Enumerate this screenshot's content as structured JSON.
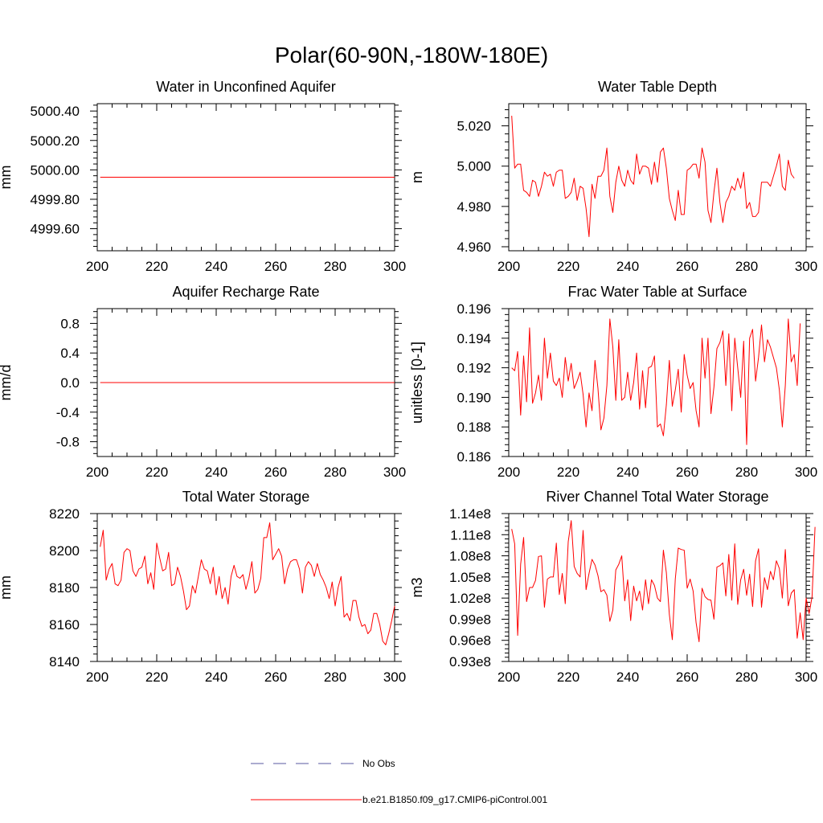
{
  "title": "Polar(60-90N,-180W-180E)",
  "colors": {
    "series": "#ff0000",
    "obs": "#5a5aa0",
    "axis": "#000000"
  },
  "legend": {
    "obs_label": "No Obs",
    "run_label": "b.e21.B1850.f09_g17.CMIP6-piControl.001"
  },
  "chart_data": [
    {
      "type": "line",
      "title": "Water in Unconfined Aquifer",
      "ylabel": "mm",
      "xlim": [
        200,
        300
      ],
      "ylim": [
        4999.45,
        5000.45
      ],
      "xticks": [
        200,
        220,
        240,
        260,
        280,
        300
      ],
      "xtick_labels": [
        "200",
        "220",
        "240",
        "260",
        "280",
        "300"
      ],
      "yticks": [
        4999.6,
        4999.8,
        5000.0,
        5000.2,
        5000.4
      ],
      "ytick_labels": [
        "4999.60",
        "4999.80",
        "5000.00",
        "5000.20",
        "5000.40"
      ],
      "x_start": 201,
      "values": [
        4999.95,
        4999.95
      ]
    },
    {
      "type": "line",
      "title": "Water Table Depth",
      "ylabel": "m",
      "xlim": [
        200,
        300
      ],
      "ylim": [
        4.958,
        5.031
      ],
      "xticks": [
        200,
        220,
        240,
        260,
        280,
        300
      ],
      "xtick_labels": [
        "200",
        "220",
        "240",
        "260",
        "280",
        "300"
      ],
      "yticks": [
        4.96,
        4.98,
        5.0,
        5.02
      ],
      "ytick_labels": [
        "4.960",
        "4.980",
        "5.000",
        "5.020"
      ],
      "x_start": 201,
      "values": [
        5.025,
        4.999,
        5.001,
        5.001,
        4.988,
        4.987,
        4.985,
        4.993,
        4.992,
        4.985,
        4.99,
        4.997,
        4.995,
        4.996,
        4.99,
        4.997,
        4.998,
        4.998,
        4.984,
        4.985,
        4.987,
        4.994,
        4.983,
        4.99,
        4.989,
        4.979,
        4.965,
        4.991,
        4.984,
        4.995,
        4.995,
        4.998,
        5.009,
        4.985,
        4.977,
        4.992,
        5.0,
        4.993,
        4.99,
        4.998,
        4.993,
        4.991,
        5.006,
        4.996,
        5.0,
        5.0,
        4.999,
        4.991,
        5.002,
        4.992,
        5.007,
        5.009,
        4.999,
        4.984,
        4.978,
        4.973,
        4.988,
        4.976,
        4.976,
        4.998,
        4.999,
        5.001,
        5.001,
        4.994,
        5.009,
        5.002,
        4.978,
        4.972,
        4.987,
        4.999,
        4.982,
        4.972,
        4.982,
        4.985,
        4.99,
        4.988,
        4.994,
        4.989,
        4.997,
        4.979,
        4.982,
        4.975,
        4.975,
        4.977,
        4.992,
        4.992,
        4.992,
        4.99,
        4.995,
        5.0,
        5.006,
        4.99,
        4.988,
        5.003,
        4.996,
        4.994
      ]
    },
    {
      "type": "line",
      "title": "Aquifer Recharge Rate",
      "ylabel": "mm/d",
      "xlim": [
        200,
        300
      ],
      "ylim": [
        -1.0,
        1.0
      ],
      "xticks": [
        200,
        220,
        240,
        260,
        280,
        300
      ],
      "xtick_labels": [
        "200",
        "220",
        "240",
        "260",
        "280",
        "300"
      ],
      "yticks": [
        -0.8,
        -0.4,
        0.0,
        0.4,
        0.8
      ],
      "ytick_labels": [
        "-0.8",
        "-0.4",
        "0.0",
        "0.4",
        "0.8"
      ],
      "x_start": 201,
      "values": [
        0.0,
        0.0
      ]
    },
    {
      "type": "line",
      "title": "Frac Water Table at Surface",
      "ylabel": "unitless [0-1]",
      "xlim": [
        200,
        300
      ],
      "ylim": [
        0.186,
        0.196
      ],
      "xticks": [
        200,
        220,
        240,
        260,
        280,
        300
      ],
      "xtick_labels": [
        "200",
        "220",
        "240",
        "260",
        "280",
        "300"
      ],
      "yticks": [
        0.186,
        0.188,
        0.19,
        0.192,
        0.194,
        0.196
      ],
      "ytick_labels": [
        "0.186",
        "0.188",
        "0.190",
        "0.192",
        "0.194",
        "0.196"
      ],
      "x_start": 201,
      "values": [
        0.192,
        0.1918,
        0.1931,
        0.1888,
        0.1928,
        0.1897,
        0.1947,
        0.1896,
        0.1903,
        0.1915,
        0.1898,
        0.194,
        0.1913,
        0.193,
        0.1911,
        0.1908,
        0.1913,
        0.19,
        0.1927,
        0.1911,
        0.1923,
        0.1906,
        0.1911,
        0.1917,
        0.1902,
        0.188,
        0.1903,
        0.1891,
        0.1925,
        0.1906,
        0.1878,
        0.1886,
        0.1908,
        0.1953,
        0.1934,
        0.1898,
        0.1939,
        0.1898,
        0.19,
        0.1917,
        0.1898,
        0.191,
        0.193,
        0.1892,
        0.1918,
        0.1893,
        0.192,
        0.1921,
        0.1928,
        0.188,
        0.1882,
        0.1874,
        0.1895,
        0.1925,
        0.1894,
        0.1905,
        0.1919,
        0.189,
        0.1929,
        0.1915,
        0.1906,
        0.191,
        0.1891,
        0.188,
        0.194,
        0.1913,
        0.194,
        0.1889,
        0.1907,
        0.1933,
        0.1937,
        0.1945,
        0.1908,
        0.1943,
        0.1891,
        0.194,
        0.192,
        0.19,
        0.1938,
        0.1868,
        0.194,
        0.1946,
        0.1911,
        0.1927,
        0.1949,
        0.1924,
        0.1939,
        0.1934,
        0.1927,
        0.192,
        0.1905,
        0.188,
        0.1908,
        0.1953,
        0.1924,
        0.1929,
        0.1908,
        0.195
      ]
    },
    {
      "type": "line",
      "title": "Total Water Storage",
      "ylabel": "mm",
      "xlim": [
        200,
        300
      ],
      "ylim": [
        8140,
        8220
      ],
      "xticks": [
        200,
        220,
        240,
        260,
        280,
        300
      ],
      "xtick_labels": [
        "200",
        "220",
        "240",
        "260",
        "280",
        "300"
      ],
      "yticks": [
        8140,
        8160,
        8180,
        8200,
        8220
      ],
      "ytick_labels": [
        "8140",
        "8160",
        "8180",
        "8200",
        "8220"
      ],
      "x_start": 201,
      "values": [
        8202,
        8211,
        8184,
        8190,
        8193,
        8182,
        8181,
        8184,
        8199,
        8201,
        8200,
        8189,
        8186,
        8190,
        8191,
        8197,
        8182,
        8188,
        8179,
        8204,
        8196,
        8189,
        8190,
        8199,
        8181,
        8182,
        8191,
        8186,
        8178,
        8168,
        8170,
        8181,
        8177,
        8186,
        8195,
        8190,
        8189,
        8182,
        8191,
        8176,
        8186,
        8174,
        8180,
        8171,
        8186,
        8192,
        8186,
        8185,
        8187,
        8179,
        8185,
        8194,
        8177,
        8179,
        8185,
        8207,
        8207,
        8215,
        8195,
        8198,
        8201,
        8197,
        8182,
        8190,
        8194,
        8195,
        8195,
        8190,
        8177,
        8191,
        8194,
        8192,
        8186,
        8193,
        8187,
        8184,
        8180,
        8174,
        8183,
        8170,
        8180,
        8186,
        8164,
        8166,
        8162,
        8173,
        8173,
        8164,
        8159,
        8160,
        8155,
        8157,
        8166,
        8166,
        8160,
        8151,
        8149,
        8155,
        8162,
        8170
      ]
    },
    {
      "type": "line",
      "title": "River Channel Total Water Storage",
      "ylabel": "m3",
      "xlim": [
        200,
        300
      ],
      "ylim": [
        93000000.0,
        114000000.0
      ],
      "xticks": [
        200,
        220,
        240,
        260,
        280,
        300
      ],
      "xtick_labels": [
        "200",
        "220",
        "240",
        "260",
        "280",
        "300"
      ],
      "yticks": [
        93000000.0,
        96000000.0,
        99000000.0,
        102000000.0,
        105000000.0,
        108000000.0,
        111000000.0,
        114000000.0
      ],
      "ytick_labels": [
        "0.93e8",
        "0.96e8",
        "0.99e8",
        "1.02e8",
        "1.05e8",
        "1.08e8",
        "1.11e8",
        "1.14e8"
      ],
      "x_start": 201,
      "values": [
        111800000.0,
        109700000.0,
        96700000.0,
        106800000.0,
        110600000.0,
        101500000.0,
        103500000.0,
        103500000.0,
        104500000.0,
        107900000.0,
        108000000.0,
        100700000.0,
        104700000.0,
        105000000.0,
        105000000.0,
        109800000.0,
        102500000.0,
        105500000.0,
        101200000.0,
        110000000.0,
        113000000.0,
        106500000.0,
        105500000.0,
        105000000.0,
        111600000.0,
        103200000.0,
        105500000.0,
        107500000.0,
        106700000.0,
        105200000.0,
        102900000.0,
        103200000.0,
        102400000.0,
        98700000.0,
        100300000.0,
        106000000.0,
        106800000.0,
        108000000.0,
        101600000.0,
        104600000.0,
        98800000.0,
        103700000.0,
        101600000.0,
        103000000.0,
        100300000.0,
        104600000.0,
        101200000.0,
        104600000.0,
        103800000.0,
        102000000.0,
        101500000.0,
        108800000.0,
        105600000.0,
        99700000.0,
        96100000.0,
        104700000.0,
        109100000.0,
        108900000.0,
        108800000.0,
        103400000.0,
        104700000.0,
        103000000.0,
        98500000.0,
        95800000.0,
        103400000.0,
        102200000.0,
        101800000.0,
        101700000.0,
        99000000.0,
        106400000.0,
        106600000.0,
        107000000.0,
        102300000.0,
        108200000.0,
        101700000.0,
        109700000.0,
        101100000.0,
        104600000.0,
        106100000.0,
        102400000.0,
        105400000.0,
        100800000.0,
        107300000.0,
        109000000.0,
        100700000.0,
        104900000.0,
        103200000.0,
        105800000.0,
        104600000.0,
        107300000.0,
        106200000.0,
        102000000.0,
        108900000.0,
        100900000.0,
        102700000.0,
        103200000.0,
        96300000.0,
        99900000.0,
        96100000.0,
        102000000.0,
        99800000.0,
        102200000.0,
        112100000.0
      ]
    }
  ]
}
